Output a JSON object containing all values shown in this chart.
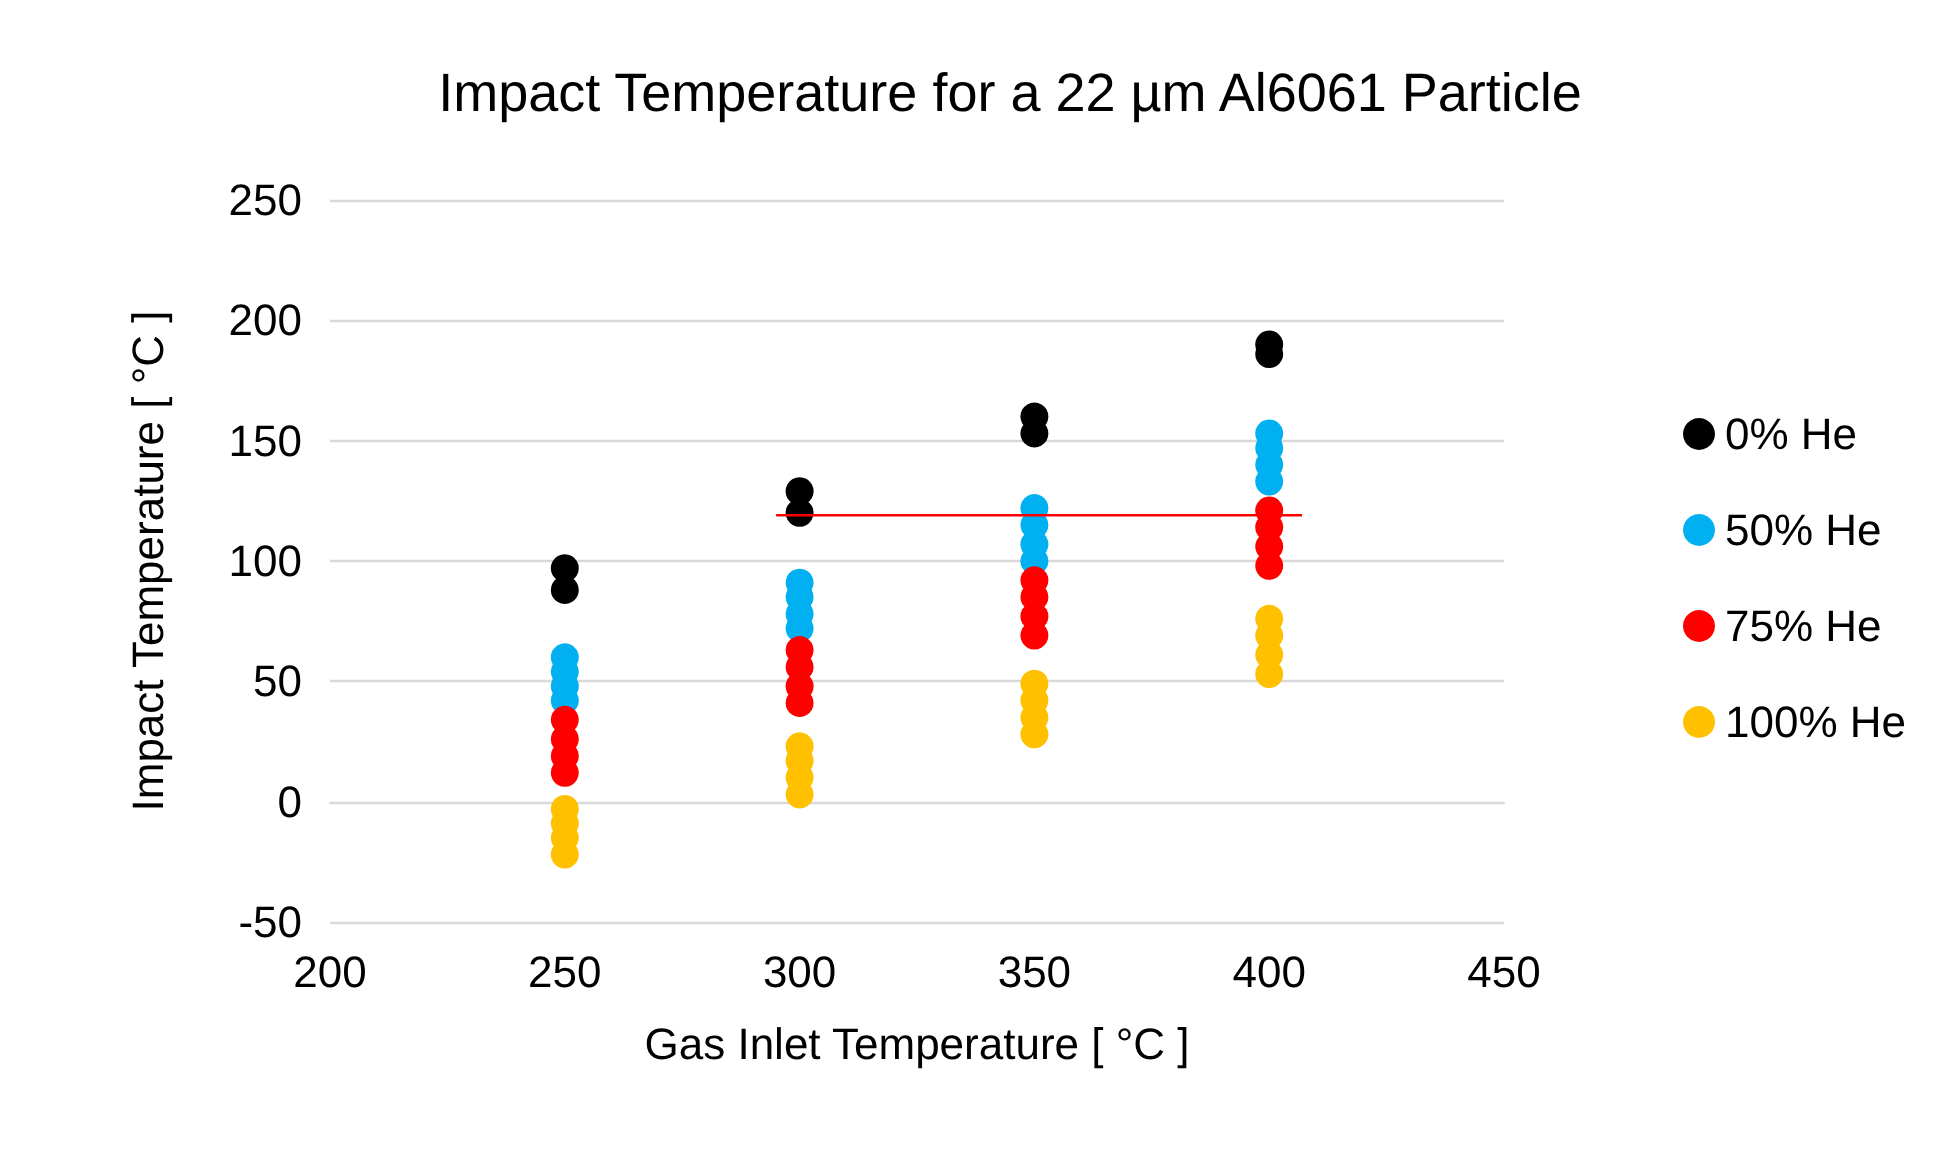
{
  "chart_data": {
    "type": "scatter",
    "title": "Impact Temperature for a 22 µm Al6061 Particle",
    "xlabel": "Gas Inlet Temperature [ °C ]",
    "ylabel": "Impact Temperature [ °C ]",
    "xlim": [
      200,
      450
    ],
    "xticks": [
      200,
      250,
      300,
      350,
      400,
      450
    ],
    "ylim": [
      -50,
      250
    ],
    "yticks": [
      -50,
      0,
      50,
      100,
      150,
      200,
      250
    ],
    "grid": "y",
    "legend": "right",
    "marker": "circle",
    "series": [
      {
        "name": "0% He",
        "color": "#000000",
        "x": [
          250,
          250,
          300,
          300,
          350,
          350,
          400,
          400
        ],
        "values": [
          88,
          97,
          120,
          129,
          153,
          160,
          186,
          190
        ]
      },
      {
        "name": "50% He",
        "color": "#00b0f0",
        "x": [
          250,
          250,
          250,
          250,
          300,
          300,
          300,
          300,
          350,
          350,
          350,
          350,
          400,
          400,
          400,
          400
        ],
        "values": [
          42,
          48,
          54,
          60,
          72,
          78,
          85,
          91,
          100,
          107,
          115,
          122,
          133,
          140,
          147,
          153
        ]
      },
      {
        "name": "75% He",
        "color": "#ff0000",
        "x": [
          250,
          250,
          250,
          250,
          300,
          300,
          300,
          300,
          350,
          350,
          350,
          350,
          400,
          400,
          400,
          400
        ],
        "values": [
          12,
          19,
          26,
          34,
          41,
          48,
          56,
          63,
          69,
          77,
          85,
          92,
          98,
          106,
          114,
          121
        ]
      },
      {
        "name": "100% He",
        "color": "#ffc000",
        "x": [
          250,
          250,
          250,
          250,
          300,
          300,
          300,
          300,
          350,
          350,
          350,
          350,
          400,
          400,
          400,
          400
        ],
        "values": [
          -22,
          -15,
          -9,
          -3,
          3,
          10,
          17,
          23,
          28,
          35,
          42,
          49,
          53,
          61,
          69,
          76
        ]
      },
      {
        "type": "line",
        "color": "#ff0000",
        "x": [
          295,
          407
        ],
        "values": [
          119,
          119
        ],
        "marker": "none"
      }
    ]
  }
}
